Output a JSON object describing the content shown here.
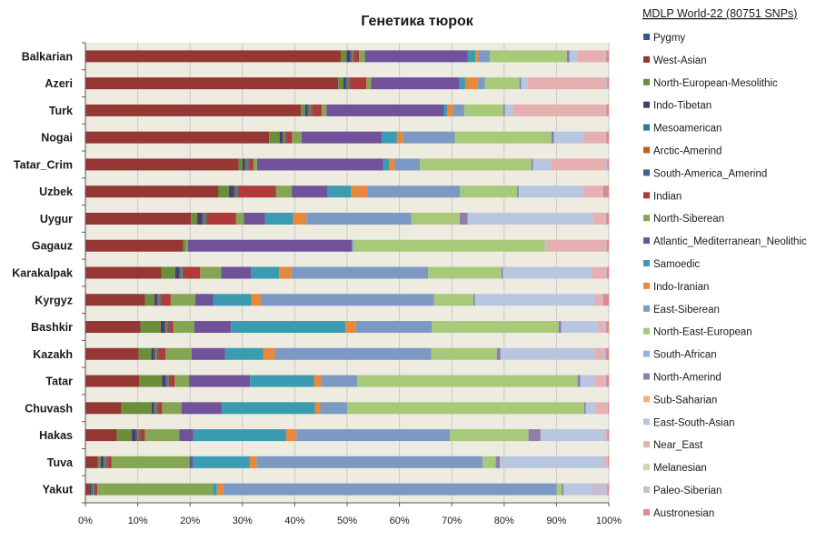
{
  "chart_data": {
    "type": "bar",
    "orientation": "horizontal",
    "stacked": true,
    "title": "Генетика тюрок",
    "legend_title": "MDLP World-22 (80751 SNPs)",
    "xlim": [
      0,
      100
    ],
    "x_ticks": [
      "0%",
      "10%",
      "20%",
      "30%",
      "40%",
      "50%",
      "60%",
      "70%",
      "80%",
      "90%",
      "100%"
    ],
    "grid": true,
    "legend_position": "right",
    "categories": [
      "Balkarian",
      "Azeri",
      "Turk",
      "Nogai",
      "Tatar_Crim",
      "Uzbek",
      "Uygur",
      "Gagauz",
      "Karakalpak",
      "Kyrgyz",
      "Bashkir",
      "Kazakh",
      "Tatar",
      "Chuvash",
      "Hakas",
      "Tuva",
      "Yakut"
    ],
    "series": [
      {
        "name": "Pygmy",
        "color": "#2e5c91",
        "values": [
          0,
          0,
          0,
          0,
          0,
          0,
          0,
          0,
          0,
          0,
          0,
          0,
          0,
          0,
          0,
          0,
          0
        ]
      },
      {
        "name": "West-Asian",
        "color": "#953735",
        "values": [
          48.8,
          48.4,
          41.3,
          35.2,
          29.3,
          25.4,
          20.1,
          18.7,
          14.6,
          11.4,
          10.5,
          10.2,
          10.3,
          6.9,
          6.0,
          2.4,
          0.8
        ]
      },
      {
        "name": "North-European-Mesolithic",
        "color": "#6b8e3a",
        "values": [
          1.1,
          1.0,
          0.8,
          2.0,
          0.7,
          2.0,
          1.2,
          0.4,
          2.6,
          1.8,
          3.9,
          2.4,
          4.4,
          5.8,
          2.9,
          0.5,
          0
        ]
      },
      {
        "name": "Indo-Tibetan",
        "color": "#4d3a72",
        "values": [
          0.7,
          0.5,
          0.5,
          0.5,
          0.5,
          1.0,
          1.0,
          0,
          0.8,
          0.5,
          0.7,
          0.5,
          0.7,
          0.4,
          0.8,
          0.5,
          0.3
        ]
      },
      {
        "name": "Mesoamerican",
        "color": "#2c7a8c",
        "values": [
          0.3,
          0.3,
          0.3,
          0.3,
          0.3,
          0.3,
          0.3,
          0,
          0.3,
          0.3,
          0.3,
          0.3,
          0.3,
          0.3,
          0.3,
          0.3,
          0.3
        ]
      },
      {
        "name": "Arctic-Amerind",
        "color": "#c25e16",
        "values": [
          0.3,
          0.3,
          0.3,
          0.3,
          0.3,
          0.3,
          0.3,
          0,
          0.3,
          0.3,
          0.3,
          0.3,
          0.3,
          0.3,
          0.3,
          0.3,
          0.3
        ]
      },
      {
        "name": "South-America_Amerind",
        "color": "#3a6591",
        "values": [
          0.3,
          0.3,
          0.3,
          0.3,
          0.3,
          0.3,
          0.3,
          0,
          0.3,
          0.3,
          0.3,
          0.3,
          0.3,
          0.3,
          0.3,
          0.3,
          0.3
        ]
      },
      {
        "name": "Indian",
        "color": "#b03a3a",
        "values": [
          0.8,
          3.0,
          1.8,
          1.0,
          0.7,
          7.1,
          5.5,
          0,
          3.1,
          1.7,
          0.8,
          1.3,
          0.8,
          0.7,
          0.8,
          0.7,
          0.3
        ]
      },
      {
        "name": "North-Siberean",
        "color": "#84a552",
        "values": [
          1.1,
          0.9,
          0.9,
          1.8,
          0.7,
          3.0,
          1.5,
          0.5,
          4.0,
          4.7,
          4.0,
          5.0,
          2.8,
          3.7,
          6.6,
          14.9,
          22.1
        ]
      },
      {
        "name": "Atlantic_Mediterranean_Neolithic",
        "color": "#71519a",
        "values": [
          19.6,
          16.8,
          22.5,
          15.4,
          24.1,
          6.8,
          4.0,
          31.3,
          5.7,
          3.4,
          7.0,
          6.4,
          11.7,
          7.7,
          2.7,
          0.6,
          0
        ]
      },
      {
        "name": "Samoedic",
        "color": "#3b9bb0",
        "values": [
          1.5,
          1.2,
          0.6,
          2.9,
          1.1,
          4.5,
          5.4,
          0,
          5.4,
          7.3,
          21.9,
          7.3,
          12.3,
          17.9,
          17.8,
          10.9,
          0.8
        ]
      },
      {
        "name": "Indo-Iranian",
        "color": "#e8883a",
        "values": [
          0.6,
          2.5,
          1.2,
          1.2,
          1.1,
          3.1,
          2.5,
          0,
          2.4,
          1.8,
          2.0,
          2.2,
          1.4,
          1.0,
          2.0,
          1.3,
          1.2
        ]
      },
      {
        "name": "East-Siberean",
        "color": "#7c99c4",
        "values": [
          2.2,
          1.3,
          2.1,
          9.9,
          4.8,
          17.7,
          20.0,
          0.3,
          26.2,
          33.1,
          14.5,
          29.9,
          6.9,
          5.2,
          29.4,
          43.2,
          63.9
        ]
      },
      {
        "name": "North-East-European",
        "color": "#a8c97a",
        "values": [
          14.7,
          6.6,
          7.5,
          18.5,
          21.3,
          10.9,
          9.2,
          36.6,
          14.0,
          7.5,
          24.2,
          12.5,
          42.3,
          45.4,
          15.1,
          2.5,
          1.0
        ]
      },
      {
        "name": "South-African",
        "color": "#8db3e2",
        "values": [
          0,
          0,
          0,
          0,
          0,
          0,
          0,
          0,
          0,
          0,
          0,
          0,
          0,
          0,
          0,
          0,
          0
        ]
      },
      {
        "name": "North-Amerind",
        "color": "#8f7fa8",
        "values": [
          0.5,
          0.3,
          0.3,
          0.5,
          0.3,
          0.3,
          1.5,
          0,
          0.3,
          0.3,
          0.5,
          0.7,
          0.5,
          0.3,
          2.3,
          0.8,
          0.3
        ]
      },
      {
        "name": "Sub-Saharian",
        "color": "#f5b07a",
        "values": [
          0,
          0,
          0,
          0,
          0,
          0,
          0,
          0,
          0,
          0,
          0,
          0,
          0,
          0,
          0,
          0,
          0
        ]
      },
      {
        "name": "East-South-Asian",
        "color": "#b8c6e0",
        "values": [
          1.5,
          1.3,
          1.5,
          5.7,
          3.5,
          12.5,
          23.9,
          0.3,
          17.1,
          23.0,
          7.1,
          18.0,
          2.8,
          2.0,
          12.1,
          20.0,
          5.3
        ]
      },
      {
        "name": "Near_East",
        "color": "#e6b0b0",
        "values": [
          5.1,
          14.9,
          17.6,
          4.0,
          10.4,
          3.3,
          2.2,
          11.2,
          2.5,
          1.2,
          1.0,
          1.5,
          1.7,
          2.0,
          0.4,
          0.4,
          0
        ]
      },
      {
        "name": "Melanesian",
        "color": "#c9dca8",
        "values": [
          0,
          0,
          0,
          0,
          0,
          0,
          0,
          0,
          0,
          0,
          0,
          0,
          0,
          0,
          0,
          0,
          0
        ]
      },
      {
        "name": "Paleo-Siberian",
        "color": "#c4bdd4",
        "values": [
          0.4,
          0.3,
          0.3,
          0.3,
          0.3,
          0.3,
          0.3,
          0.3,
          0.3,
          0.3,
          0.5,
          0.6,
          0.5,
          0.2,
          0.3,
          0.2,
          3.1
        ]
      },
      {
        "name": "Austronesian",
        "color": "#e0898a",
        "values": [
          0.5,
          0.3,
          0.5,
          0.5,
          0.3,
          1.1,
          0.5,
          0.4,
          0.4,
          1.1,
          0.5,
          0.6,
          0.5,
          0.2,
          0.3,
          0.2,
          0.3
        ]
      }
    ]
  }
}
